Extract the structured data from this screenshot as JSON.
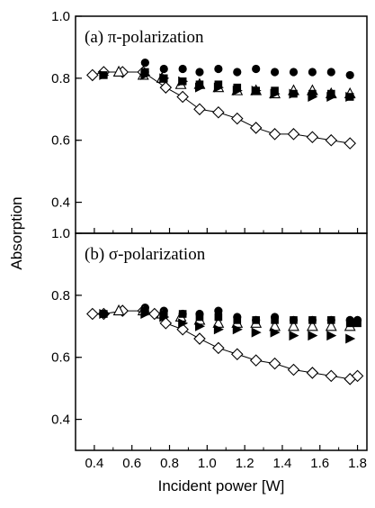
{
  "chart_data": [
    {
      "panel": "a",
      "type": "scatter",
      "title": "(a)  π-polarization",
      "ylabel": "Absorption",
      "xlabel": "",
      "xlim": [
        0.3,
        1.85
      ],
      "ylim": [
        0.3,
        1.0
      ],
      "yticks": [
        0.4,
        0.6,
        0.8,
        1.0
      ],
      "ytick_labels": [
        "0.4",
        "0.6",
        "0.8",
        "1.0"
      ],
      "grid": false,
      "series": [
        {
          "marker": "open-diamond",
          "line": true,
          "x": [
            0.39,
            0.45,
            0.55,
            0.66,
            0.78,
            0.87,
            0.96,
            1.06,
            1.16,
            1.26,
            1.36,
            1.46,
            1.56,
            1.66,
            1.76
          ],
          "y": [
            0.81,
            0.82,
            0.82,
            0.82,
            0.77,
            0.74,
            0.7,
            0.69,
            0.67,
            0.64,
            0.62,
            0.62,
            0.61,
            0.6,
            0.59
          ]
        },
        {
          "marker": "filled-circle",
          "line": false,
          "x": [
            0.67,
            0.77,
            0.87,
            0.96,
            1.06,
            1.16,
            1.26,
            1.36,
            1.46,
            1.56,
            1.66,
            1.76
          ],
          "y": [
            0.85,
            0.83,
            0.83,
            0.82,
            0.83,
            0.82,
            0.83,
            0.82,
            0.82,
            0.82,
            0.82,
            0.81
          ]
        },
        {
          "marker": "open-triangle",
          "line": false,
          "x": [
            0.53,
            0.66,
            0.76,
            0.86,
            0.96,
            1.06,
            1.16,
            1.26,
            1.36,
            1.46,
            1.56,
            1.66,
            1.76
          ],
          "y": [
            0.82,
            0.81,
            0.8,
            0.78,
            0.78,
            0.77,
            0.76,
            0.76,
            0.75,
            0.76,
            0.76,
            0.75,
            0.75
          ]
        },
        {
          "marker": "filled-square",
          "line": false,
          "x": [
            0.45,
            0.67,
            0.77,
            0.87,
            0.96,
            1.06,
            1.16,
            1.26,
            1.36,
            1.46,
            1.56,
            1.66,
            1.76
          ],
          "y": [
            0.81,
            0.82,
            0.8,
            0.79,
            0.78,
            0.78,
            0.77,
            0.76,
            0.76,
            0.75,
            0.75,
            0.75,
            0.74
          ]
        },
        {
          "marker": "filled-triangle-right",
          "line": false,
          "x": [
            0.45,
            0.67,
            0.77,
            0.87,
            0.96,
            1.06,
            1.16,
            1.26,
            1.36,
            1.46,
            1.56,
            1.66,
            1.76
          ],
          "y": [
            0.81,
            0.81,
            0.8,
            0.79,
            0.77,
            0.77,
            0.76,
            0.76,
            0.75,
            0.75,
            0.74,
            0.74,
            0.74
          ]
        }
      ]
    },
    {
      "panel": "b",
      "type": "scatter",
      "title": "(b)  σ-polarization",
      "ylabel": "Absorption",
      "xlabel": "Incident power [W]",
      "xlim": [
        0.3,
        1.85
      ],
      "ylim": [
        0.3,
        1.0
      ],
      "yticks": [
        0.4,
        0.6,
        0.8,
        1.0
      ],
      "ytick_labels": [
        "0.4",
        "0.6",
        "0.8",
        "1.0"
      ],
      "xticks": [
        0.4,
        0.6,
        0.8,
        1.0,
        1.2,
        1.4,
        1.6,
        1.8
      ],
      "xtick_labels": [
        "0.4",
        "0.6",
        "0.8",
        "1.0",
        "1.2",
        "1.4",
        "1.6",
        "1.8"
      ],
      "grid": false,
      "series": [
        {
          "marker": "open-diamond",
          "line": true,
          "x": [
            0.39,
            0.45,
            0.55,
            0.66,
            0.72,
            0.78,
            0.87,
            0.96,
            1.06,
            1.16,
            1.26,
            1.36,
            1.46,
            1.56,
            1.66,
            1.76,
            1.8
          ],
          "y": [
            0.74,
            0.74,
            0.75,
            0.75,
            0.74,
            0.71,
            0.69,
            0.66,
            0.63,
            0.61,
            0.59,
            0.58,
            0.56,
            0.55,
            0.54,
            0.53,
            0.54
          ]
        },
        {
          "marker": "filled-circle",
          "line": false,
          "x": [
            0.45,
            0.67,
            0.77,
            0.87,
            0.96,
            1.06,
            1.16,
            1.26,
            1.36,
            1.46,
            1.56,
            1.66,
            1.76,
            1.8
          ],
          "y": [
            0.74,
            0.76,
            0.75,
            0.74,
            0.74,
            0.75,
            0.73,
            0.72,
            0.73,
            0.72,
            0.72,
            0.72,
            0.72,
            0.72
          ]
        },
        {
          "marker": "open-triangle",
          "line": false,
          "x": [
            0.53,
            0.66,
            0.76,
            0.86,
            0.96,
            1.06,
            1.16,
            1.26,
            1.36,
            1.46,
            1.56,
            1.66,
            1.76
          ],
          "y": [
            0.75,
            0.75,
            0.74,
            0.73,
            0.72,
            0.71,
            0.71,
            0.71,
            0.7,
            0.7,
            0.7,
            0.7,
            0.7
          ]
        },
        {
          "marker": "filled-square",
          "line": false,
          "x": [
            0.45,
            0.67,
            0.77,
            0.87,
            0.96,
            1.06,
            1.16,
            1.26,
            1.36,
            1.46,
            1.56,
            1.66,
            1.76,
            1.8
          ],
          "y": [
            0.74,
            0.75,
            0.74,
            0.74,
            0.73,
            0.73,
            0.72,
            0.72,
            0.72,
            0.72,
            0.72,
            0.72,
            0.71,
            0.71
          ]
        },
        {
          "marker": "filled-triangle-right",
          "line": false,
          "x": [
            0.45,
            0.67,
            0.77,
            0.87,
            0.96,
            1.06,
            1.16,
            1.26,
            1.36,
            1.46,
            1.56,
            1.66,
            1.76
          ],
          "y": [
            0.74,
            0.74,
            0.73,
            0.71,
            0.7,
            0.69,
            0.69,
            0.68,
            0.68,
            0.67,
            0.67,
            0.67,
            0.66
          ]
        }
      ]
    }
  ]
}
